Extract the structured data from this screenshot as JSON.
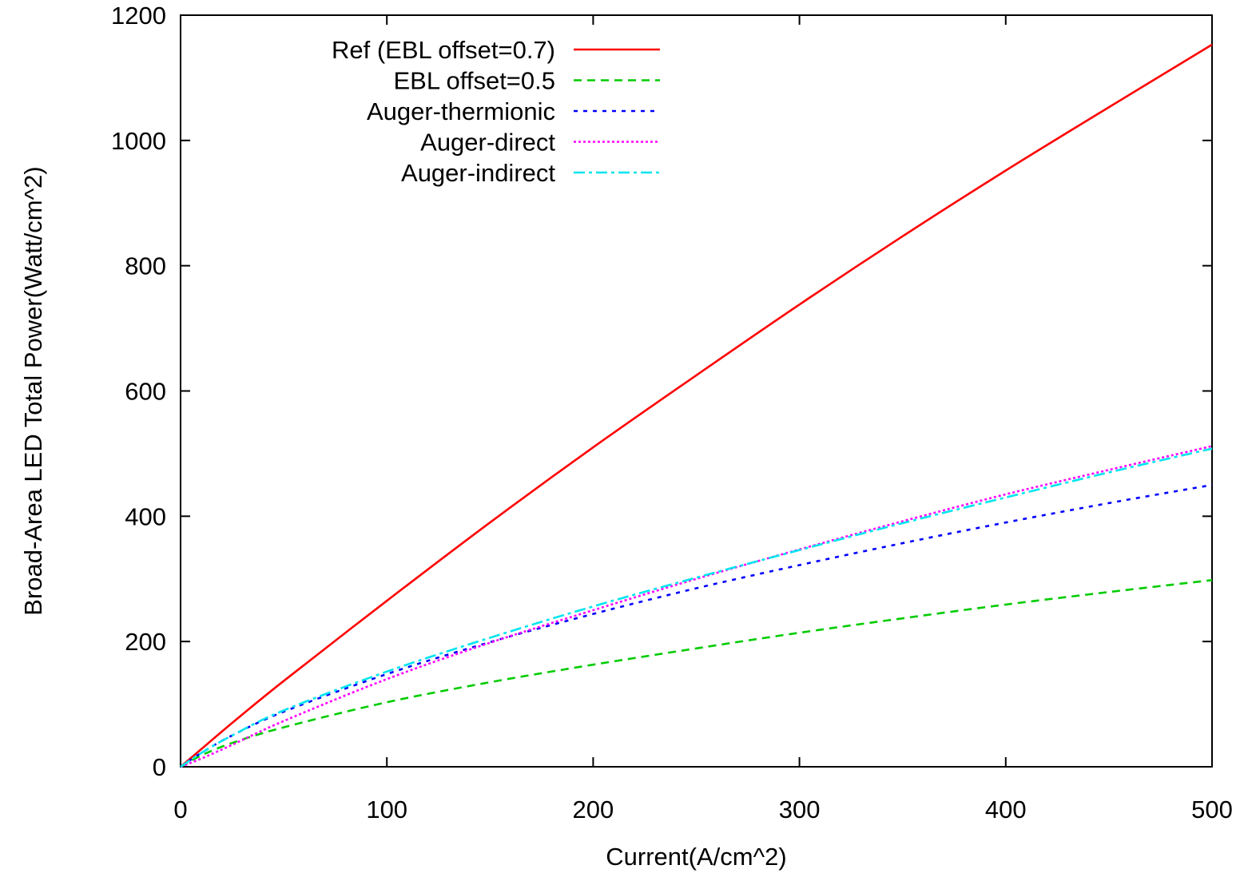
{
  "chart_data": {
    "type": "line",
    "title": "",
    "xlabel": "Current(A/cm^2)",
    "ylabel": "Broad-Area LED Total Power(Watt/cm^2)",
    "xlim": [
      0,
      500
    ],
    "ylim": [
      0,
      1200
    ],
    "xticks": [
      0,
      100,
      200,
      300,
      400,
      500
    ],
    "yticks": [
      0,
      200,
      400,
      600,
      800,
      1000,
      1200
    ],
    "grid": false,
    "legend_position": "top-left",
    "x": [
      0,
      10,
      25,
      50,
      100,
      150,
      200,
      250,
      300,
      350,
      400,
      450,
      500
    ],
    "series": [
      {
        "name": "Ref (EBL offset=0.7)",
        "color": "#ff0000",
        "dash": "solid",
        "values": [
          0,
          28,
          70,
          137,
          265,
          390,
          510,
          625,
          738,
          847,
          952,
          1053,
          1153
        ]
      },
      {
        "name": "EBL offset=0.5",
        "color": "#00cc00",
        "dash": "dashed",
        "values": [
          0,
          18,
          38,
          63,
          103,
          135,
          163,
          189,
          214,
          237,
          259,
          279,
          298
        ]
      },
      {
        "name": "Auger-thermionic",
        "color": "#0000ff",
        "dash": "dotted-dense",
        "values": [
          0,
          22,
          50,
          88,
          148,
          199,
          244,
          285,
          322,
          357,
          390,
          421,
          450
        ]
      },
      {
        "name": "Auger-direct",
        "color": "#ff00ff",
        "dash": "dotted-fine",
        "values": [
          0,
          13,
          35,
          73,
          140,
          198,
          250,
          300,
          347,
          392,
          435,
          474,
          512
        ]
      },
      {
        "name": "Auger-indirect",
        "color": "#00e5ee",
        "dash": "dash-dot",
        "values": [
          0,
          22,
          50,
          90,
          152,
          206,
          256,
          302,
          346,
          389,
          430,
          470,
          508
        ]
      }
    ]
  }
}
